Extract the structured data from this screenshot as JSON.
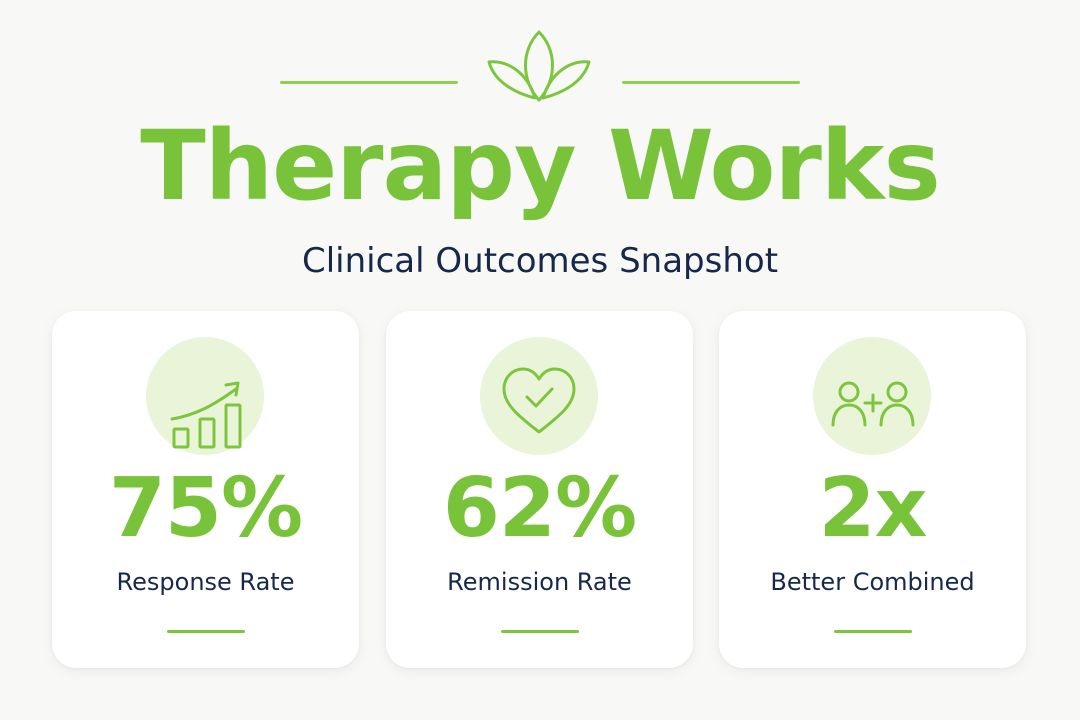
{
  "header": {
    "title": "Therapy Works",
    "subtitle": "Clinical Outcomes Snapshot",
    "ornament_icon": "lotus-icon"
  },
  "colors": {
    "accent": "#79c33a",
    "accent_light": "#eaf4d9",
    "text_dark": "#17284a",
    "background": "#f8f9f7",
    "card": "#ffffff"
  },
  "cards": [
    {
      "icon": "growth-chart-icon",
      "value": "75%",
      "label": "Response Rate"
    },
    {
      "icon": "heart-check-icon",
      "value": "62%",
      "label": "Remission Rate"
    },
    {
      "icon": "people-plus-icon",
      "value": "2x",
      "label": "Better Combined"
    }
  ]
}
